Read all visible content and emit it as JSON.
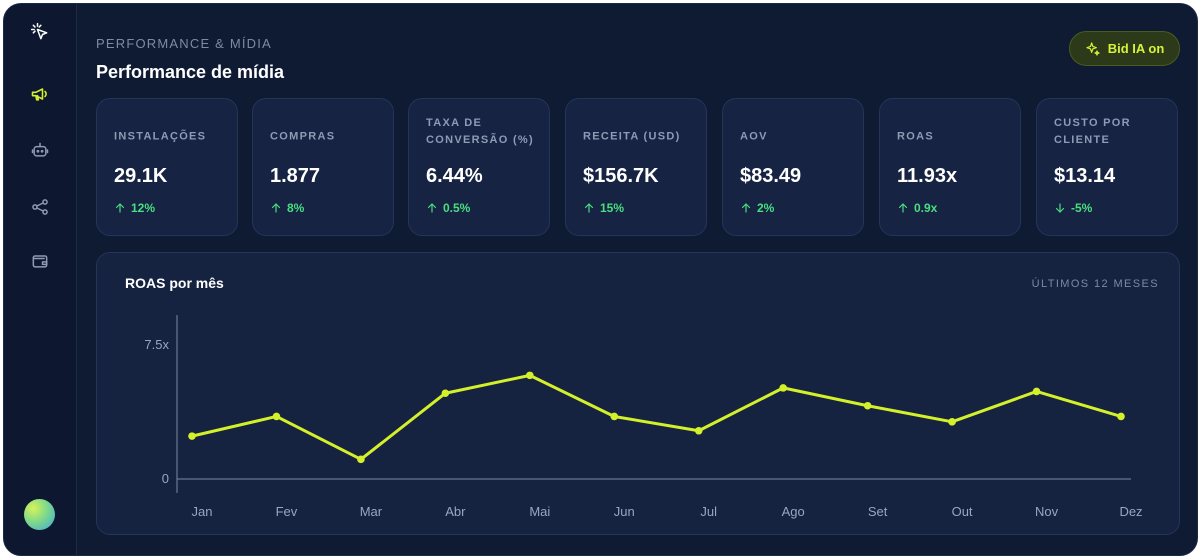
{
  "sidebar": {
    "items": [
      {
        "icon": "cursor-click-icon"
      },
      {
        "icon": "megaphone-icon",
        "active": true
      },
      {
        "icon": "bot-icon"
      },
      {
        "icon": "share-icon"
      },
      {
        "icon": "wallet-icon"
      }
    ]
  },
  "header": {
    "eyebrow": "PERFORMANCE & MÍDIA",
    "title": "Performance de mídia",
    "bid_button_label": "Bid IA on"
  },
  "kpis": [
    {
      "label": "INSTALAÇÕES",
      "value": "29.1K",
      "delta": "12%",
      "direction": "up"
    },
    {
      "label": "COMPRAS",
      "value": "1.877",
      "delta": "8%",
      "direction": "up"
    },
    {
      "label": "TAXA DE CONVERSÃO (%)",
      "value": "6.44%",
      "delta": "0.5%",
      "direction": "up"
    },
    {
      "label": "RECEITA (USD)",
      "value": "$156.7K",
      "delta": "15%",
      "direction": "up"
    },
    {
      "label": "AOV",
      "value": "$83.49",
      "delta": "2%",
      "direction": "up"
    },
    {
      "label": "ROAS",
      "value": "11.93x",
      "delta": "0.9x",
      "direction": "up"
    },
    {
      "label": "CUSTO POR CLIENTE",
      "value": "$13.14",
      "delta": "-5%",
      "direction": "down"
    }
  ],
  "colors": {
    "accent": "#d4f02a",
    "positive": "#4ade80",
    "card_bg": "#162342"
  },
  "chart_data": {
    "type": "line",
    "title": "ROAS por mês",
    "range_label": "ÚLTIMOS 12 MESES",
    "categories": [
      "Jan",
      "Fev",
      "Mar",
      "Abr",
      "Mai",
      "Jun",
      "Jul",
      "Ago",
      "Set",
      "Out",
      "Nov",
      "Dez"
    ],
    "values": [
      2.4,
      3.5,
      1.1,
      4.8,
      5.8,
      3.5,
      2.7,
      5.1,
      4.1,
      3.2,
      4.9,
      3.5
    ],
    "ylim": [
      0,
      7.5
    ],
    "yticks": [
      {
        "value": 0,
        "label": "0"
      },
      {
        "value": 7.5,
        "label": "7.5x"
      }
    ],
    "grid": false,
    "legend": "none"
  }
}
